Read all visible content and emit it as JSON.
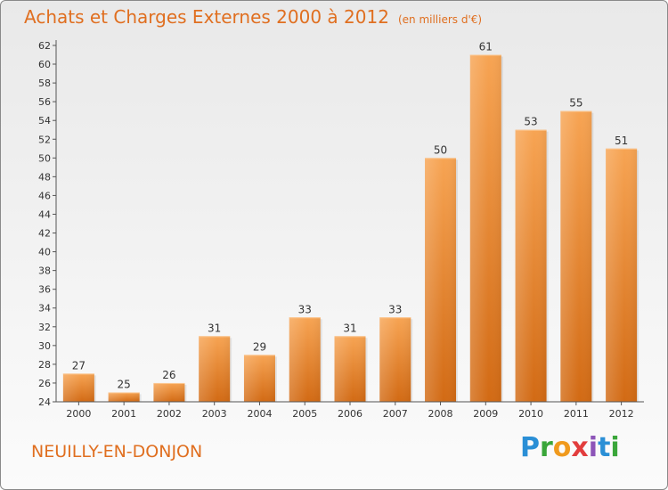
{
  "header": {
    "title": "Achats et Charges Externes 2000 à 2012",
    "unit": "(en milliers d'€)"
  },
  "footer": {
    "city": "NEUILLY-EN-DONJON",
    "brand": "Proxiti"
  },
  "colors": {
    "accent": "#e06f20",
    "bar_light": "#f7a453",
    "bar_dark": "#d26a14"
  },
  "chart_data": {
    "type": "bar",
    "title": "Achats et Charges Externes 2000 à 2012",
    "subtitle": "(en milliers d'€)",
    "categories": [
      "2000",
      "2001",
      "2002",
      "2003",
      "2004",
      "2005",
      "2006",
      "2007",
      "2008",
      "2009",
      "2010",
      "2011",
      "2012"
    ],
    "values": [
      27,
      25,
      26,
      31,
      29,
      33,
      31,
      33,
      50,
      61,
      53,
      55,
      51
    ],
    "ylim": [
      24,
      62
    ],
    "yticks": [
      24,
      26,
      28,
      30,
      32,
      34,
      36,
      38,
      40,
      42,
      44,
      46,
      48,
      50,
      52,
      54,
      56,
      58,
      60,
      62
    ],
    "grid": false,
    "legend": "none"
  }
}
